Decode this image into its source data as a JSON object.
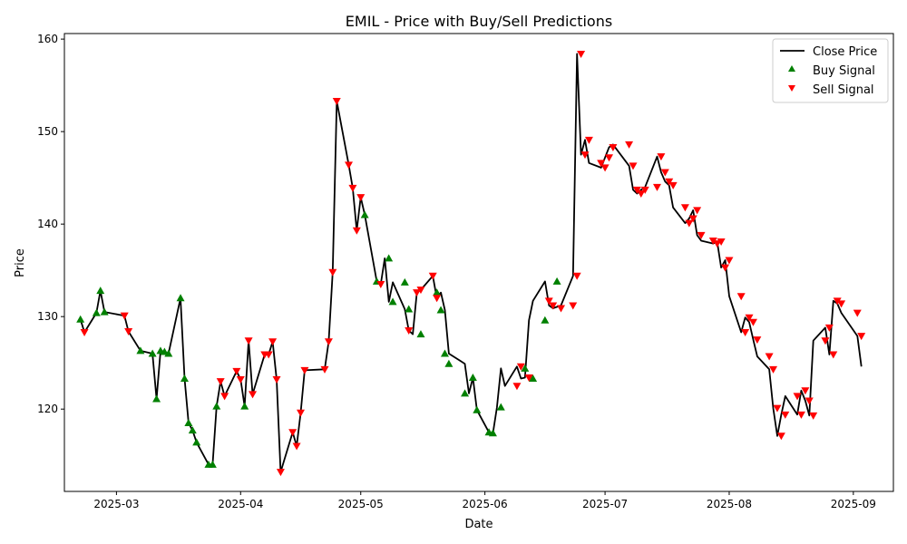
{
  "chart_data": {
    "type": "line",
    "title": "EMIL - Price with Buy/Sell Predictions",
    "xlabel": "Date",
    "ylabel": "Price",
    "x_ticks": [
      "2025-03",
      "2025-04",
      "2025-05",
      "2025-06",
      "2025-07",
      "2025-08",
      "2025-09"
    ],
    "y_ticks": [
      120,
      130,
      140,
      150,
      160
    ],
    "xlim": [
      "2025-02-16",
      "2025-09-11"
    ],
    "ylim": [
      111.1,
      160.6
    ],
    "grid": false,
    "legend_position": "upper-right",
    "legend": [
      {
        "label": "Close Price",
        "kind": "line",
        "color": "#000000"
      },
      {
        "label": "Buy Signal",
        "kind": "marker-up",
        "color": "#008000"
      },
      {
        "label": "Sell Signal",
        "kind": "marker-down",
        "color": "#ff0000"
      }
    ],
    "series": [
      {
        "name": "Close Price",
        "x": [
          "2025-02-20",
          "2025-02-21",
          "2025-02-24",
          "2025-02-25",
          "2025-02-26",
          "2025-03-03",
          "2025-03-04",
          "2025-03-07",
          "2025-03-10",
          "2025-03-11",
          "2025-03-12",
          "2025-03-13",
          "2025-03-14",
          "2025-03-17",
          "2025-03-18",
          "2025-03-19",
          "2025-03-20",
          "2025-03-21",
          "2025-03-24",
          "2025-03-25",
          "2025-03-26",
          "2025-03-27",
          "2025-03-28",
          "2025-03-31",
          "2025-04-01",
          "2025-04-02",
          "2025-04-03",
          "2025-04-04",
          "2025-04-07",
          "2025-04-08",
          "2025-04-09",
          "2025-04-10",
          "2025-04-11",
          "2025-04-14",
          "2025-04-15",
          "2025-04-16",
          "2025-04-17",
          "2025-04-22",
          "2025-04-23",
          "2025-04-24",
          "2025-04-25",
          "2025-04-28",
          "2025-04-29",
          "2025-04-30",
          "2025-05-01",
          "2025-05-02",
          "2025-05-05",
          "2025-05-06",
          "2025-05-07",
          "2025-05-08",
          "2025-05-09",
          "2025-05-12",
          "2025-05-13",
          "2025-05-14",
          "2025-05-15",
          "2025-05-16",
          "2025-05-19",
          "2025-05-20",
          "2025-05-21",
          "2025-05-22",
          "2025-05-23",
          "2025-05-27",
          "2025-05-28",
          "2025-05-29",
          "2025-05-30",
          "2025-06-02",
          "2025-06-03",
          "2025-06-04",
          "2025-06-05",
          "2025-06-06",
          "2025-06-09",
          "2025-06-10",
          "2025-06-11",
          "2025-06-12",
          "2025-06-13",
          "2025-06-16",
          "2025-06-17",
          "2025-06-18",
          "2025-06-20",
          "2025-06-23",
          "2025-06-24",
          "2025-06-25",
          "2025-06-26",
          "2025-06-27",
          "2025-06-30",
          "2025-07-01",
          "2025-07-02",
          "2025-07-03",
          "2025-07-07",
          "2025-07-08",
          "2025-07-09",
          "2025-07-10",
          "2025-07-11",
          "2025-07-14",
          "2025-07-15",
          "2025-07-16",
          "2025-07-17",
          "2025-07-18",
          "2025-07-21",
          "2025-07-22",
          "2025-07-23",
          "2025-07-24",
          "2025-07-25",
          "2025-07-28",
          "2025-07-29",
          "2025-07-30",
          "2025-07-31",
          "2025-08-01",
          "2025-08-04",
          "2025-08-05",
          "2025-08-06",
          "2025-08-07",
          "2025-08-08",
          "2025-08-11",
          "2025-08-12",
          "2025-08-13",
          "2025-08-14",
          "2025-08-15",
          "2025-08-18",
          "2025-08-19",
          "2025-08-20",
          "2025-08-21",
          "2025-08-22",
          "2025-08-25",
          "2025-08-26",
          "2025-08-27",
          "2025-08-28",
          "2025-08-29",
          "2025-09-02",
          "2025-09-03"
        ],
        "values": [
          129.7,
          128.3,
          130.4,
          132.8,
          130.5,
          130.1,
          128.4,
          126.3,
          126.0,
          121.1,
          126.3,
          126.2,
          126.0,
          132.0,
          123.3,
          118.5,
          117.7,
          116.4,
          114.0,
          114.0,
          120.3,
          123.0,
          121.4,
          124.1,
          123.2,
          120.3,
          127.4,
          121.6,
          125.9,
          125.9,
          127.3,
          123.2,
          113.2,
          117.5,
          116.0,
          119.6,
          124.2,
          124.3,
          127.3,
          134.8,
          153.3,
          146.4,
          143.9,
          139.3,
          142.9,
          141.0,
          133.8,
          133.5,
          136.3,
          131.6,
          133.7,
          130.8,
          128.5,
          128.1,
          132.6,
          132.9,
          134.4,
          132.0,
          132.6,
          130.7,
          126.0,
          124.9,
          121.7,
          123.4,
          119.9,
          117.5,
          117.4,
          120.2,
          124.4,
          122.5,
          124.6,
          123.3,
          123.4,
          129.6,
          131.7,
          133.8,
          131.2,
          130.9,
          131.2,
          134.4,
          158.4,
          147.5,
          149.1,
          146.6,
          146.1,
          147.2,
          148.3,
          148.6,
          146.3,
          143.7,
          143.3,
          143.7,
          144.0,
          147.3,
          145.6,
          144.6,
          144.2,
          141.8,
          140.1,
          140.6,
          141.5,
          138.8,
          138.2,
          137.9,
          138.1,
          135.3,
          136.1,
          132.2,
          128.3,
          129.9,
          129.4,
          127.5,
          125.7,
          124.3,
          120.1,
          117.1,
          119.4,
          121.4,
          119.4,
          122.0,
          120.9,
          119.3,
          127.4,
          128.8,
          125.9,
          131.7,
          131.4,
          130.4,
          127.9,
          124.6
        ]
      },
      {
        "name": "Buy Signal",
        "x": [
          "2025-02-20",
          "2025-02-24",
          "2025-02-25",
          "2025-02-26",
          "2025-03-07",
          "2025-03-10",
          "2025-03-11",
          "2025-03-12",
          "2025-03-13",
          "2025-03-14",
          "2025-03-17",
          "2025-03-18",
          "2025-03-19",
          "2025-03-20",
          "2025-03-21",
          "2025-03-24",
          "2025-03-25",
          "2025-03-26",
          "2025-04-02",
          "2025-05-02",
          "2025-05-05",
          "2025-05-08",
          "2025-05-09",
          "2025-05-12",
          "2025-05-13",
          "2025-05-16",
          "2025-05-20",
          "2025-05-21",
          "2025-05-22",
          "2025-05-23",
          "2025-05-27",
          "2025-05-29",
          "2025-05-30",
          "2025-06-02",
          "2025-06-03",
          "2025-06-05",
          "2025-06-11",
          "2025-06-13",
          "2025-06-16",
          "2025-06-19"
        ],
        "values": [
          129.7,
          130.4,
          132.8,
          130.5,
          126.3,
          126.0,
          121.1,
          126.3,
          126.2,
          126.0,
          132.0,
          123.3,
          118.5,
          117.7,
          116.4,
          114.0,
          114.0,
          120.3,
          120.3,
          141.0,
          133.8,
          136.3,
          131.6,
          133.7,
          130.8,
          128.1,
          132.6,
          130.7,
          126.0,
          124.9,
          121.7,
          123.4,
          119.9,
          117.5,
          117.4,
          120.2,
          124.4,
          123.3,
          129.6,
          133.8
        ]
      },
      {
        "name": "Sell Signal",
        "x": [
          "2025-02-21",
          "2025-03-03",
          "2025-03-04",
          "2025-03-27",
          "2025-03-28",
          "2025-03-31",
          "2025-04-01",
          "2025-04-03",
          "2025-04-04",
          "2025-04-07",
          "2025-04-08",
          "2025-04-09",
          "2025-04-10",
          "2025-04-11",
          "2025-04-14",
          "2025-04-15",
          "2025-04-16",
          "2025-04-17",
          "2025-04-22",
          "2025-04-23",
          "2025-04-24",
          "2025-04-25",
          "2025-04-28",
          "2025-04-29",
          "2025-04-30",
          "2025-05-01",
          "2025-05-06",
          "2025-05-13",
          "2025-05-15",
          "2025-05-16",
          "2025-05-19",
          "2025-05-20",
          "2025-06-09",
          "2025-06-10",
          "2025-06-12",
          "2025-06-17",
          "2025-06-18",
          "2025-06-20",
          "2025-06-23",
          "2025-06-24",
          "2025-06-25",
          "2025-06-26",
          "2025-06-27",
          "2025-06-30",
          "2025-07-01",
          "2025-07-02",
          "2025-07-03",
          "2025-07-07",
          "2025-07-08",
          "2025-07-09",
          "2025-07-10",
          "2025-07-11",
          "2025-07-14",
          "2025-07-15",
          "2025-07-16",
          "2025-07-17",
          "2025-07-18",
          "2025-07-21",
          "2025-07-22",
          "2025-07-23",
          "2025-07-24",
          "2025-07-25",
          "2025-07-28",
          "2025-07-29",
          "2025-07-30",
          "2025-07-31",
          "2025-08-01",
          "2025-08-04",
          "2025-08-05",
          "2025-08-06",
          "2025-08-07",
          "2025-08-08",
          "2025-08-11",
          "2025-08-12",
          "2025-08-13",
          "2025-08-14",
          "2025-08-15",
          "2025-08-18",
          "2025-08-19",
          "2025-08-20",
          "2025-08-21",
          "2025-08-22",
          "2025-08-25",
          "2025-08-26",
          "2025-08-27",
          "2025-08-28",
          "2025-08-29",
          "2025-09-02",
          "2025-09-03"
        ],
        "values": [
          128.3,
          130.1,
          128.4,
          123.0,
          121.4,
          124.1,
          123.2,
          127.4,
          121.6,
          125.9,
          125.9,
          127.3,
          123.2,
          113.2,
          117.5,
          116.0,
          119.6,
          124.2,
          124.3,
          127.3,
          134.8,
          153.3,
          146.4,
          143.9,
          139.3,
          142.9,
          133.5,
          128.5,
          132.6,
          132.9,
          134.4,
          132.0,
          122.5,
          124.6,
          123.4,
          131.7,
          131.2,
          130.9,
          131.2,
          134.4,
          158.4,
          147.5,
          149.1,
          146.6,
          146.1,
          147.2,
          148.3,
          148.6,
          146.3,
          143.7,
          143.3,
          143.7,
          144.0,
          147.3,
          145.6,
          144.6,
          144.2,
          141.8,
          140.1,
          140.6,
          141.5,
          138.8,
          138.2,
          137.9,
          138.1,
          135.3,
          136.1,
          132.2,
          128.3,
          129.9,
          129.4,
          127.5,
          125.7,
          124.3,
          120.1,
          117.1,
          119.4,
          121.4,
          119.4,
          122.0,
          120.9,
          119.3,
          127.4,
          128.8,
          125.9,
          131.7,
          131.4,
          130.4,
          127.9
        ]
      }
    ]
  }
}
